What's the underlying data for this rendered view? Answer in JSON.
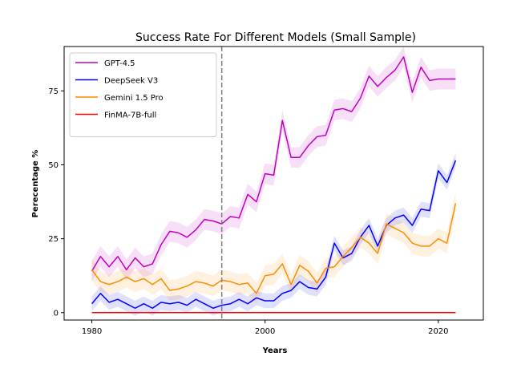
{
  "chart_data": {
    "type": "line",
    "title": "Success Rate For Different Models (Small Sample)",
    "xlabel": "Years",
    "ylabel": "Perecentage %",
    "xlim": [
      1976.8,
      2025.2
    ],
    "ylim": [
      -2.5,
      90
    ],
    "x_ticks": [
      1980,
      2000,
      2020
    ],
    "y_ticks": [
      0,
      25,
      50,
      75
    ],
    "grid": false,
    "legend_position": "top-left",
    "vline": {
      "x": 1995,
      "style": "dashed",
      "color": "#808080"
    },
    "x": [
      1980,
      1981,
      1982,
      1983,
      1984,
      1985,
      1986,
      1987,
      1988,
      1989,
      1990,
      1991,
      1992,
      1993,
      1994,
      1995,
      1996,
      1997,
      1998,
      1999,
      2000,
      2001,
      2002,
      2003,
      2004,
      2005,
      2006,
      2007,
      2008,
      2009,
      2010,
      2011,
      2012,
      2013,
      2014,
      2015,
      2016,
      2017,
      2018,
      2019,
      2020,
      2021,
      2022
    ],
    "series": [
      {
        "name": "GPT-4.5",
        "color": "#bf00bf",
        "values": [
          14,
          19,
          15.5,
          19,
          14.5,
          18.5,
          15.5,
          16.5,
          23,
          27.5,
          27,
          25.5,
          28,
          31.5,
          31,
          30,
          32.5,
          32,
          40,
          37.5,
          47,
          46.5,
          65,
          52.5,
          52.5,
          56.5,
          59.5,
          60,
          68.5,
          69,
          68,
          72.5,
          80,
          76.5,
          79.5,
          82,
          86.5,
          74.5,
          83,
          78.5,
          79,
          79,
          79
        ],
        "band": 3.5
      },
      {
        "name": "DeepSeek V3",
        "color": "#0000ff",
        "values": [
          3,
          6.5,
          3.5,
          4.5,
          3,
          1.5,
          3,
          1.5,
          3.5,
          3,
          3.5,
          2.5,
          4.5,
          3,
          1.5,
          2.5,
          3,
          4.5,
          3,
          5,
          4,
          4,
          6.5,
          7.5,
          10.5,
          8.5,
          8,
          12,
          23.5,
          18.5,
          20,
          25.5,
          29.5,
          22.5,
          29.5,
          32,
          33,
          29.5,
          35,
          34.5,
          48,
          44,
          51.5
        ],
        "band": 2.5
      },
      {
        "name": "Gemini 1.5 Pro",
        "color": "#ff8c00",
        "values": [
          14.5,
          10.5,
          9.5,
          10.5,
          12,
          10.5,
          11.5,
          9.5,
          11.5,
          7.5,
          8,
          9,
          10.5,
          10,
          9,
          11,
          10.5,
          9.5,
          10,
          6.5,
          12.5,
          13,
          16.5,
          9.5,
          16,
          14,
          10,
          15,
          15.5,
          19,
          22,
          25.5,
          23.5,
          20,
          30,
          28.5,
          27,
          23.5,
          22.5,
          22.5,
          25,
          23.5,
          37
        ],
        "band": 3.5
      },
      {
        "name": "FinMA-7B-full",
        "color": "#ff0000",
        "values": [
          0,
          0,
          0,
          0,
          0,
          0,
          0,
          0,
          0,
          0,
          0,
          0,
          0,
          0,
          0,
          0,
          0,
          0,
          0,
          0,
          0,
          0,
          0,
          0,
          0,
          0,
          0,
          0,
          0,
          0,
          0,
          0,
          0,
          0,
          0,
          0,
          0,
          0,
          0,
          0,
          0,
          0,
          0
        ],
        "band": 0
      }
    ]
  }
}
